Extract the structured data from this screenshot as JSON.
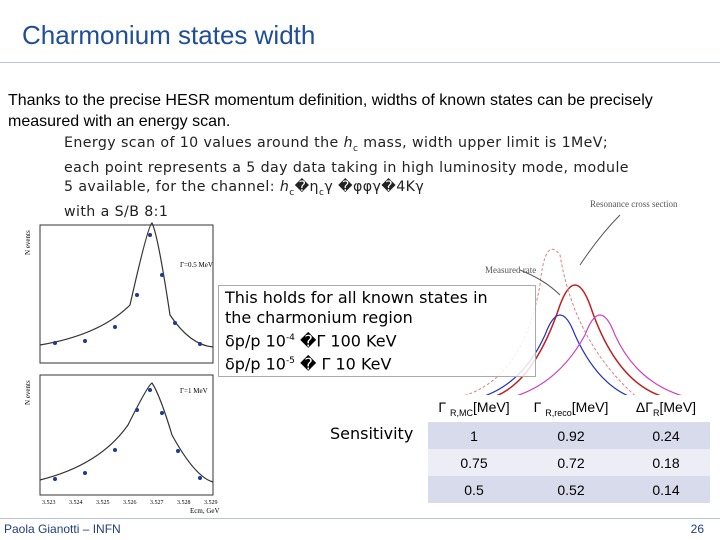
{
  "header": {
    "title": "Charmonium states width"
  },
  "intro": "Thanks to the precise HESR momentum definition, widths of known states can be precisely measured with an energy scan.",
  "scan": {
    "lines": [
      [
        "Energy scan of 10 values around the ",
        "h",
        "c",
        " mass, width upper limit is 1MeV;"
      ],
      [
        "each point represents a 5 day data taking in high luminosity mode, module"
      ],
      [
        "5 available, for the channel: ",
        "h",
        "c",
        "�η",
        "c",
        "γ �φφγ�4Kγ"
      ],
      [
        "with a S/B 8:1"
      ]
    ]
  },
  "figure_left": {
    "panels": [
      {
        "label": "Γ=0.5 MeV",
        "ylabel": "N events"
      },
      {
        "label": "Γ=1 MeV",
        "ylabel": "N events"
      }
    ],
    "xticks": [
      "3.523",
      "3.524",
      "3.525",
      "3.526",
      "3.527",
      "3.528",
      "3.529"
    ],
    "xlabel": "Ecm, GeV"
  },
  "figure_right": {
    "labels": [
      "Resonance cross section",
      "Measured rate"
    ]
  },
  "box": {
    "lines": [
      [
        "This holds for all known states in"
      ],
      [
        "the charmonium region"
      ],
      [
        "δp/p 10",
        "-4",
        " �Γ 100 KeV"
      ],
      [
        "δp/p 10",
        "-5",
        " � Γ 10 KeV"
      ]
    ]
  },
  "table": {
    "label": "Sensitivity",
    "header": [
      [
        "Γ ",
        "R,MC",
        "[MeV]"
      ],
      [
        "Γ ",
        "R,reco",
        "[MeV]"
      ],
      [
        "ΔΓ",
        "R",
        "[MeV]"
      ]
    ],
    "rows": [
      [
        "1",
        "0.92",
        "0.24"
      ],
      [
        "0.75",
        "0.72",
        "0.18"
      ],
      [
        "0.5",
        "0.52",
        "0.14"
      ]
    ]
  },
  "footer": {
    "author": "Paola Gianotti – INFN",
    "page": "26"
  }
}
